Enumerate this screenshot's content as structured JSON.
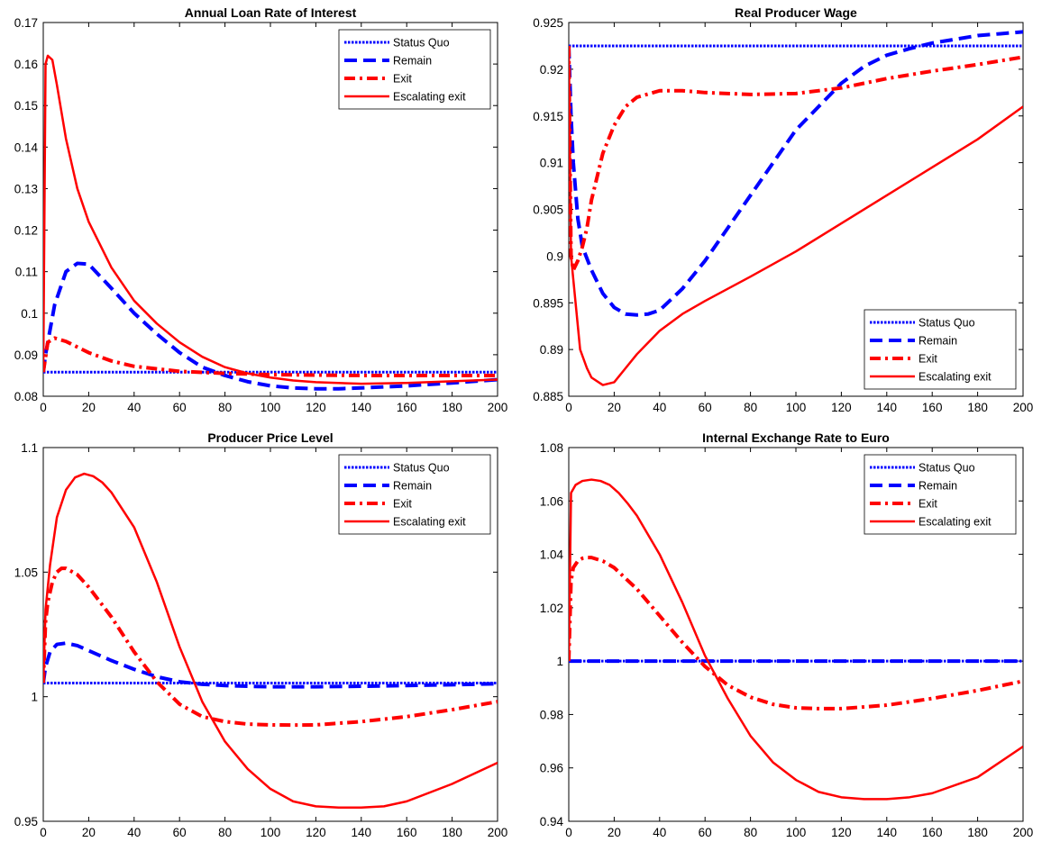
{
  "chart_data": [
    {
      "type": "line",
      "title": "Annual Loan Rate of Interest",
      "xlim": [
        0,
        200
      ],
      "ylim": [
        0.08,
        0.17
      ],
      "xticks": [
        "0",
        "20",
        "40",
        "60",
        "80",
        "100",
        "120",
        "140",
        "160",
        "180",
        "200"
      ],
      "yticks": [
        "0.08",
        "0.09",
        "0.1",
        "0.11",
        "0.12",
        "0.13",
        "0.14",
        "0.15",
        "0.16",
        "0.17"
      ],
      "legend_position": "top-right",
      "series": [
        {
          "name": "Status Quo",
          "color": "#0000ff",
          "style": "dotted",
          "x": [
            0,
            200
          ],
          "y": [
            0.0858,
            0.0858
          ]
        },
        {
          "name": "Remain",
          "color": "#0000ff",
          "style": "dashed",
          "x": [
            0,
            1,
            5,
            10,
            15,
            20,
            30,
            40,
            50,
            60,
            70,
            80,
            90,
            100,
            110,
            120,
            130,
            140,
            160,
            180,
            200
          ],
          "y": [
            0.0858,
            0.09,
            0.102,
            0.11,
            0.112,
            0.1118,
            0.106,
            0.1,
            0.095,
            0.0905,
            0.087,
            0.085,
            0.0835,
            0.0825,
            0.082,
            0.0818,
            0.0818,
            0.082,
            0.0825,
            0.0832,
            0.084
          ]
        },
        {
          "name": "Exit",
          "color": "#ff0000",
          "style": "dashdot",
          "x": [
            0,
            2,
            5,
            10,
            20,
            30,
            40,
            60,
            80,
            100,
            120,
            140,
            160,
            180,
            200
          ],
          "y": [
            0.0858,
            0.093,
            0.094,
            0.0932,
            0.0905,
            0.0885,
            0.0872,
            0.086,
            0.0855,
            0.0852,
            0.0851,
            0.085,
            0.085,
            0.085,
            0.085
          ]
        },
        {
          "name": "Escalating exit",
          "color": "#ff0000",
          "style": "solid",
          "x": [
            0,
            1,
            2,
            4,
            6,
            10,
            15,
            20,
            30,
            40,
            50,
            60,
            70,
            80,
            90,
            100,
            110,
            120,
            140,
            160,
            180,
            200
          ],
          "y": [
            0.0858,
            0.16,
            0.162,
            0.161,
            0.155,
            0.142,
            0.13,
            0.122,
            0.111,
            0.103,
            0.0975,
            0.093,
            0.0895,
            0.087,
            0.0855,
            0.0845,
            0.0838,
            0.0834,
            0.083,
            0.0832,
            0.0836,
            0.084
          ]
        }
      ],
      "legend": [
        "Status Quo",
        "Remain",
        "Exit",
        "Escalating exit"
      ]
    },
    {
      "type": "line",
      "title": "Real Producer Wage",
      "xlim": [
        0,
        200
      ],
      "ylim": [
        0.885,
        0.925
      ],
      "xticks": [
        "0",
        "20",
        "40",
        "60",
        "80",
        "100",
        "120",
        "140",
        "160",
        "180",
        "200"
      ],
      "yticks": [
        "0.885",
        "0.89",
        "0.895",
        "0.9",
        "0.905",
        "0.91",
        "0.915",
        "0.92",
        "0.925"
      ],
      "legend_position": "bottom-right",
      "series": [
        {
          "name": "Status Quo",
          "color": "#0000ff",
          "style": "dotted",
          "x": [
            0,
            200
          ],
          "y": [
            0.9225,
            0.9225
          ]
        },
        {
          "name": "Remain",
          "color": "#0000ff",
          "style": "dashed",
          "x": [
            0,
            1,
            2,
            4,
            6,
            10,
            15,
            20,
            25,
            30,
            35,
            40,
            50,
            60,
            70,
            80,
            90,
            100,
            110,
            120,
            130,
            140,
            150,
            160,
            170,
            180,
            190,
            200
          ],
          "y": [
            0.9225,
            0.915,
            0.91,
            0.904,
            0.901,
            0.8985,
            0.896,
            0.8945,
            0.8938,
            0.8937,
            0.8938,
            0.8942,
            0.8965,
            0.8995,
            0.903,
            0.9065,
            0.91,
            0.9135,
            0.916,
            0.9185,
            0.9203,
            0.9215,
            0.9222,
            0.9228,
            0.9232,
            0.9236,
            0.9238,
            0.924
          ]
        },
        {
          "name": "Exit",
          "color": "#ff0000",
          "style": "dashdot",
          "x": [
            0,
            1,
            2,
            4,
            6,
            8,
            10,
            15,
            20,
            25,
            30,
            40,
            50,
            60,
            80,
            100,
            120,
            140,
            160,
            180,
            200
          ],
          "y": [
            0.9225,
            0.9,
            0.8985,
            0.8995,
            0.901,
            0.903,
            0.906,
            0.911,
            0.914,
            0.916,
            0.917,
            0.9177,
            0.9177,
            0.9175,
            0.9173,
            0.9174,
            0.918,
            0.919,
            0.9198,
            0.9205,
            0.9213
          ]
        },
        {
          "name": "Escalating exit",
          "color": "#ff0000",
          "style": "solid",
          "x": [
            0,
            1,
            2,
            3,
            5,
            8,
            10,
            15,
            20,
            25,
            30,
            40,
            50,
            60,
            80,
            100,
            120,
            140,
            160,
            180,
            200
          ],
          "y": [
            0.9225,
            0.9,
            0.8975,
            0.895,
            0.89,
            0.888,
            0.887,
            0.8862,
            0.8865,
            0.888,
            0.8895,
            0.892,
            0.8938,
            0.8952,
            0.8978,
            0.9005,
            0.9035,
            0.9065,
            0.9095,
            0.9125,
            0.916
          ]
        }
      ],
      "legend": [
        "Status Quo",
        "Remain",
        "Exit",
        "Escalating exit"
      ]
    },
    {
      "type": "line",
      "title": "Producer Price Level",
      "xlim": [
        0,
        200
      ],
      "ylim": [
        0.95,
        1.1
      ],
      "xticks": [
        "0",
        "20",
        "40",
        "60",
        "80",
        "100",
        "120",
        "140",
        "160",
        "180",
        "200"
      ],
      "yticks": [
        "0.95",
        "1",
        "1.05",
        "1.1"
      ],
      "legend_position": "top-right",
      "series": [
        {
          "name": "Status Quo",
          "color": "#0000ff",
          "style": "dotted",
          "x": [
            0,
            200
          ],
          "y": [
            1.0055,
            1.0055
          ]
        },
        {
          "name": "Remain",
          "color": "#0000ff",
          "style": "dashed",
          "x": [
            0,
            1,
            3,
            6,
            10,
            15,
            20,
            30,
            40,
            50,
            60,
            70,
            80,
            90,
            100,
            110,
            120,
            140,
            160,
            180,
            200
          ],
          "y": [
            1.0055,
            1.012,
            1.018,
            1.021,
            1.0215,
            1.0205,
            1.0185,
            1.0145,
            1.011,
            1.008,
            1.006,
            1.005,
            1.0045,
            1.0042,
            1.004,
            1.004,
            1.004,
            1.0042,
            1.0045,
            1.0048,
            1.0052
          ]
        },
        {
          "name": "Exit",
          "color": "#ff0000",
          "style": "dashdot",
          "x": [
            0,
            1,
            2,
            4,
            6,
            8,
            10,
            15,
            20,
            30,
            40,
            50,
            60,
            70,
            80,
            90,
            100,
            110,
            120,
            140,
            160,
            180,
            200
          ],
          "y": [
            1.0055,
            1.03,
            1.038,
            1.046,
            1.05,
            1.0515,
            1.0515,
            1.049,
            1.044,
            1.032,
            1.018,
            1.006,
            0.997,
            0.992,
            0.99,
            0.989,
            0.9887,
            0.9886,
            0.9887,
            0.99,
            0.992,
            0.9948,
            0.998
          ]
        },
        {
          "name": "Escalating exit",
          "color": "#ff0000",
          "style": "solid",
          "x": [
            0,
            1,
            3,
            6,
            10,
            14,
            18,
            22,
            26,
            30,
            40,
            50,
            60,
            70,
            80,
            90,
            100,
            110,
            120,
            130,
            140,
            150,
            160,
            180,
            200
          ],
          "y": [
            1.0055,
            1.035,
            1.053,
            1.072,
            1.083,
            1.088,
            1.0895,
            1.0885,
            1.086,
            1.082,
            1.068,
            1.046,
            1.02,
            0.998,
            0.982,
            0.971,
            0.963,
            0.958,
            0.956,
            0.9555,
            0.9555,
            0.956,
            0.958,
            0.965,
            0.9735
          ]
        }
      ],
      "legend": [
        "Status Quo",
        "Remain",
        "Exit",
        "Escalating exit"
      ]
    },
    {
      "type": "line",
      "title": "Internal Exchange Rate to Euro",
      "xlim": [
        0,
        200
      ],
      "ylim": [
        0.94,
        1.08
      ],
      "xticks": [
        "0",
        "20",
        "40",
        "60",
        "80",
        "100",
        "120",
        "140",
        "160",
        "180",
        "200"
      ],
      "yticks": [
        "0.94",
        "0.96",
        "0.98",
        "1",
        "1.02",
        "1.04",
        "1.06",
        "1.08"
      ],
      "legend_position": "top-right",
      "series": [
        {
          "name": "Status Quo",
          "color": "#0000ff",
          "style": "dotted",
          "x": [
            0,
            200
          ],
          "y": [
            1.0,
            1.0
          ]
        },
        {
          "name": "Remain",
          "color": "#0000ff",
          "style": "dashed",
          "x": [
            0,
            200
          ],
          "y": [
            1.0,
            1.0
          ]
        },
        {
          "name": "Exit",
          "color": "#ff0000",
          "style": "dashdot",
          "x": [
            0,
            1,
            2,
            4,
            6,
            8,
            10,
            15,
            20,
            30,
            40,
            50,
            60,
            70,
            80,
            90,
            100,
            110,
            120,
            140,
            160,
            180,
            200
          ],
          "y": [
            1.0,
            1.03,
            1.035,
            1.0375,
            1.0385,
            1.0388,
            1.0388,
            1.0375,
            1.035,
            1.027,
            1.017,
            1.007,
            0.998,
            0.991,
            0.9865,
            0.9838,
            0.9825,
            0.9822,
            0.9822,
            0.9835,
            0.986,
            0.989,
            0.9925
          ]
        },
        {
          "name": "Escalating exit",
          "color": "#ff0000",
          "style": "solid",
          "x": [
            0,
            1,
            3,
            6,
            10,
            14,
            18,
            22,
            26,
            30,
            40,
            50,
            60,
            70,
            80,
            90,
            100,
            110,
            120,
            130,
            140,
            150,
            160,
            180,
            200
          ],
          "y": [
            1.0,
            1.063,
            1.066,
            1.0675,
            1.068,
            1.0675,
            1.066,
            1.063,
            1.059,
            1.0545,
            1.04,
            1.022,
            1.002,
            0.986,
            0.972,
            0.962,
            0.9555,
            0.951,
            0.949,
            0.9483,
            0.9483,
            0.949,
            0.9505,
            0.9565,
            0.968
          ]
        }
      ],
      "legend": [
        "Status Quo",
        "Remain",
        "Exit",
        "Escalating exit"
      ]
    }
  ]
}
